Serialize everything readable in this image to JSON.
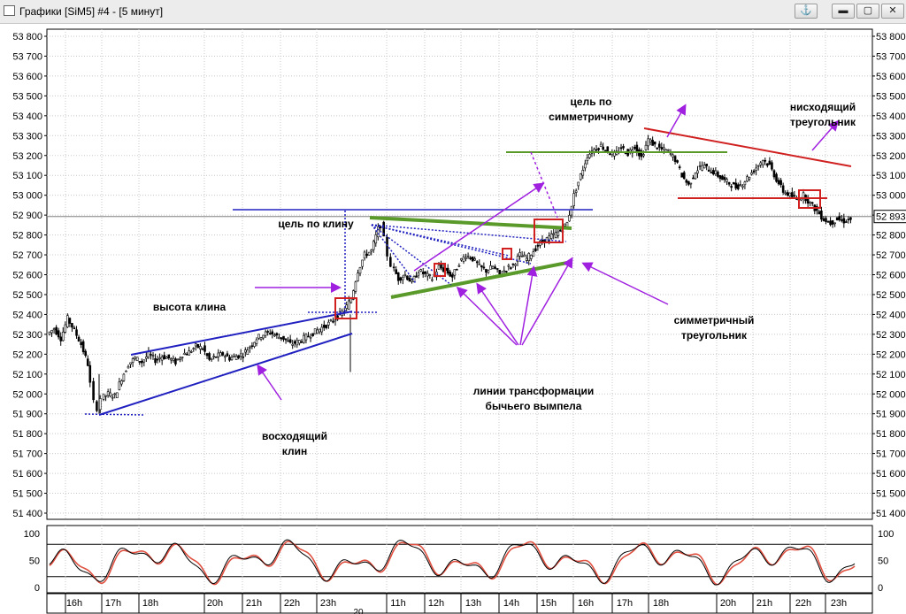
{
  "window": {
    "title": "Графики [SiM5] #4 - [5 минут]",
    "controls": [
      "anchor",
      "minimize",
      "maximize",
      "close"
    ]
  },
  "chart_data": [
    {
      "type": "candlestick",
      "instrument": "SiM5",
      "timeframe": "5 минут",
      "ylim": [
        51400,
        53800
      ],
      "y_ticks": [
        51400,
        51500,
        51600,
        51700,
        51800,
        51900,
        52000,
        52100,
        52200,
        52300,
        52400,
        52500,
        52600,
        52700,
        52800,
        52900,
        53000,
        53100,
        53200,
        53300,
        53400,
        53500,
        53600,
        53700,
        53800
      ],
      "last_price_label": "52 893",
      "last_price": 52893,
      "grid": true,
      "x_tick_labels": [
        "16h",
        "17h",
        "18h",
        "20h",
        "21h",
        "22h",
        "23h",
        "11h",
        "12h",
        "13h",
        "14h",
        "15h",
        "16h",
        "17h",
        "18h",
        "20h",
        "21h",
        "22h",
        "23h"
      ],
      "date_marker": "20",
      "price_path": [
        [
          0,
          52300
        ],
        [
          2,
          52330
        ],
        [
          4,
          52280
        ],
        [
          6,
          52380
        ],
        [
          8,
          52320
        ],
        [
          10,
          52250
        ],
        [
          12,
          52150
        ],
        [
          13,
          52050
        ],
        [
          14,
          51960
        ],
        [
          15,
          51930
        ],
        [
          16,
          51980
        ],
        [
          18,
          52000
        ],
        [
          20,
          51990
        ],
        [
          22,
          52080
        ],
        [
          24,
          52150
        ],
        [
          26,
          52180
        ],
        [
          28,
          52160
        ],
        [
          30,
          52200
        ],
        [
          32,
          52170
        ],
        [
          34,
          52190
        ],
        [
          36,
          52180
        ],
        [
          38,
          52160
        ],
        [
          40,
          52200
        ],
        [
          42,
          52210
        ],
        [
          44,
          52240
        ],
        [
          46,
          52230
        ],
        [
          48,
          52170
        ],
        [
          50,
          52190
        ],
        [
          52,
          52200
        ],
        [
          54,
          52180
        ],
        [
          56,
          52190
        ],
        [
          58,
          52200
        ],
        [
          60,
          52240
        ],
        [
          62,
          52280
        ],
        [
          64,
          52300
        ],
        [
          66,
          52310
        ],
        [
          68,
          52290
        ],
        [
          70,
          52280
        ],
        [
          72,
          52250
        ],
        [
          74,
          52260
        ],
        [
          76,
          52280
        ],
        [
          78,
          52300
        ],
        [
          80,
          52320
        ],
        [
          82,
          52340
        ],
        [
          84,
          52360
        ],
        [
          86,
          52390
        ],
        [
          88,
          52420
        ],
        [
          90,
          52480
        ],
        [
          92,
          52620
        ],
        [
          94,
          52700
        ],
        [
          96,
          52720
        ],
        [
          98,
          52830
        ],
        [
          99,
          52850
        ],
        [
          100,
          52780
        ],
        [
          101,
          52700
        ],
        [
          102,
          52650
        ],
        [
          104,
          52580
        ],
        [
          106,
          52600
        ],
        [
          108,
          52560
        ],
        [
          110,
          52620
        ],
        [
          112,
          52600
        ],
        [
          114,
          52580
        ],
        [
          116,
          52640
        ],
        [
          118,
          52620
        ],
        [
          120,
          52590
        ],
        [
          122,
          52660
        ],
        [
          124,
          52700
        ],
        [
          126,
          52680
        ],
        [
          128,
          52640
        ],
        [
          130,
          52620
        ],
        [
          132,
          52640
        ],
        [
          134,
          52600
        ],
        [
          136,
          52630
        ],
        [
          138,
          52650
        ],
        [
          140,
          52700
        ],
        [
          142,
          52680
        ],
        [
          144,
          52720
        ],
        [
          146,
          52760
        ],
        [
          148,
          52780
        ],
        [
          150,
          52800
        ],
        [
          152,
          52820
        ],
        [
          154,
          52860
        ],
        [
          156,
          53000
        ],
        [
          158,
          53100
        ],
        [
          160,
          53200
        ],
        [
          162,
          53230
        ],
        [
          164,
          53250
        ],
        [
          166,
          53220
        ],
        [
          168,
          53200
        ],
        [
          170,
          53240
        ],
        [
          172,
          53210
        ],
        [
          174,
          53250
        ],
        [
          176,
          53190
        ],
        [
          178,
          53280
        ],
        [
          180,
          53250
        ],
        [
          182,
          53230
        ],
        [
          184,
          53220
        ],
        [
          186,
          53180
        ],
        [
          188,
          53100
        ],
        [
          190,
          53050
        ],
        [
          192,
          53120
        ],
        [
          194,
          53150
        ],
        [
          196,
          53130
        ],
        [
          198,
          53110
        ],
        [
          200,
          53080
        ],
        [
          202,
          53060
        ],
        [
          204,
          53040
        ],
        [
          206,
          53060
        ],
        [
          208,
          53100
        ],
        [
          210,
          53140
        ],
        [
          212,
          53180
        ],
        [
          214,
          53150
        ],
        [
          216,
          53080
        ],
        [
          218,
          53020
        ],
        [
          220,
          53000
        ],
        [
          222,
          52980
        ],
        [
          224,
          53000
        ],
        [
          226,
          52960
        ],
        [
          228,
          52920
        ],
        [
          230,
          52880
        ],
        [
          232,
          52860
        ],
        [
          234,
          52880
        ],
        [
          236,
          52870
        ],
        [
          238,
          52880
        ]
      ],
      "overlays": [
        {
          "label": "цель по клину",
          "kind": "horizontal-line",
          "y": 52930
        },
        {
          "label": "высота клина",
          "kind": "vertical-dotted-line"
        },
        {
          "label": "восходящий клин",
          "kind": "pattern-lines"
        },
        {
          "label": "цель по симметричному",
          "kind": "horizontal-line",
          "y": 53220
        },
        {
          "label": "симметричный треугольник",
          "kind": "pattern-lines"
        },
        {
          "label": "линии трансформации бычьего вымпела",
          "kind": "fan-lines"
        },
        {
          "label": "нисходящий треугольник",
          "kind": "pattern-lines"
        }
      ]
    },
    {
      "type": "line",
      "name": "oscillator",
      "ylim": [
        0,
        100
      ],
      "y_ticks": [
        0,
        50,
        100
      ],
      "levels": [
        20,
        80
      ],
      "series_colors": [
        "#000000",
        "#e05040"
      ]
    }
  ],
  "annotations": {
    "wedge_target": "цель по клину",
    "wedge_height": "высота клина",
    "rising_wedge": [
      "восходящий",
      "клин"
    ],
    "symmetric_target": [
      "цель по",
      "симметричному"
    ],
    "symmetric_triangle": [
      "симметричный",
      "треугольник"
    ],
    "pennant_lines": [
      "линии трансформации",
      "бычьего вымпела"
    ],
    "descending_triangle": [
      "нисходящий",
      "треугольник"
    ]
  },
  "colors": {
    "candle": "#000000",
    "wedge_lines": "#2020c0",
    "target_line": "#2020c0",
    "triangle_lines": "#5a9a2a",
    "descending_lines": "#d02020",
    "arrows": "#a020e0",
    "boxes": "#d02020",
    "grid": "#c8c8c8"
  }
}
